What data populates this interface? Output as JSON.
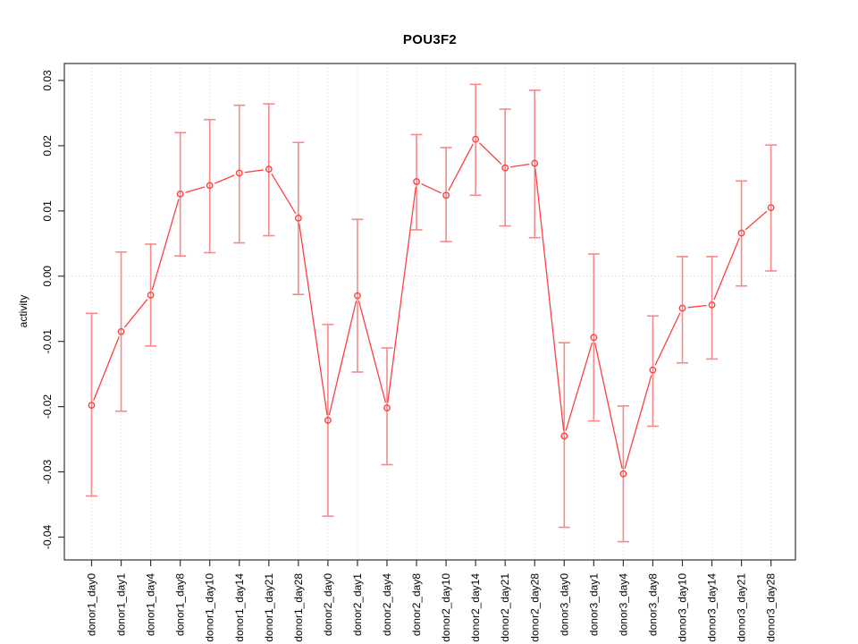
{
  "figure": {
    "background": "#ffffff"
  },
  "chart_data": {
    "type": "line",
    "title": "POU3F2",
    "xlabel": "",
    "ylabel": "activity",
    "legend": "none",
    "marker": "open-circle",
    "line_style": "points-and-segments-with-gaps",
    "error_bars": true,
    "categories": [
      "donor1_day0",
      "donor1_day1",
      "donor1_day4",
      "donor1_day8",
      "donor1_day10",
      "donor1_day14",
      "donor1_day21",
      "donor1_day28",
      "donor2_day0",
      "donor2_day1",
      "donor2_day4",
      "donor2_day8",
      "donor2_day10",
      "donor2_day14",
      "donor2_day21",
      "donor2_day28",
      "donor3_day0",
      "donor3_day1",
      "donor3_day4",
      "donor3_day8",
      "donor3_day10",
      "donor3_day14",
      "donor3_day21",
      "donor3_day28"
    ],
    "series": [
      {
        "name": "POU3F2 activity",
        "values": [
          -0.0198,
          -0.0085,
          -0.0029,
          0.0126,
          0.0139,
          0.0158,
          0.0164,
          0.0089,
          -0.0221,
          -0.003,
          -0.0202,
          0.0145,
          0.0124,
          0.021,
          0.0166,
          0.0173,
          -0.0245,
          -0.0094,
          -0.0303,
          -0.0144,
          -0.0049,
          -0.0044,
          0.0066,
          0.0105
        ],
        "error_upper": [
          -0.0057,
          0.0037,
          0.0049,
          0.022,
          0.024,
          0.0262,
          0.0264,
          0.0205,
          -0.0074,
          0.0087,
          -0.011,
          0.0217,
          0.0197,
          0.0294,
          0.0256,
          0.0285,
          -0.0102,
          0.0034,
          -0.0199,
          -0.0061,
          0.003,
          0.003,
          0.0146,
          0.0201
        ],
        "error_lower": [
          -0.0337,
          -0.0207,
          -0.0107,
          0.0031,
          0.0036,
          0.0051,
          0.0062,
          -0.0028,
          -0.0368,
          -0.0147,
          -0.0289,
          0.0071,
          0.0053,
          0.0124,
          0.0077,
          0.0059,
          -0.0385,
          -0.0222,
          -0.0407,
          -0.023,
          -0.0133,
          -0.0127,
          -0.0015,
          0.0008
        ]
      }
    ],
    "ytick_labels": [
      "0.03",
      "0.02",
      "0.01",
      "0.00",
      "-0.01",
      "-0.02",
      "-0.03",
      "-0.04"
    ],
    "ylim": [
      -0.0435,
      0.0326
    ],
    "grid": {
      "vertical_per_category": "dotted",
      "zero_line": "dotted"
    },
    "colors": {
      "series": "#ff4040",
      "error_bar": "#f58a8a",
      "grid": "#e3e3e3",
      "zero_line": "#d9d9d9",
      "axis": "#333333",
      "text": "#000000"
    }
  }
}
